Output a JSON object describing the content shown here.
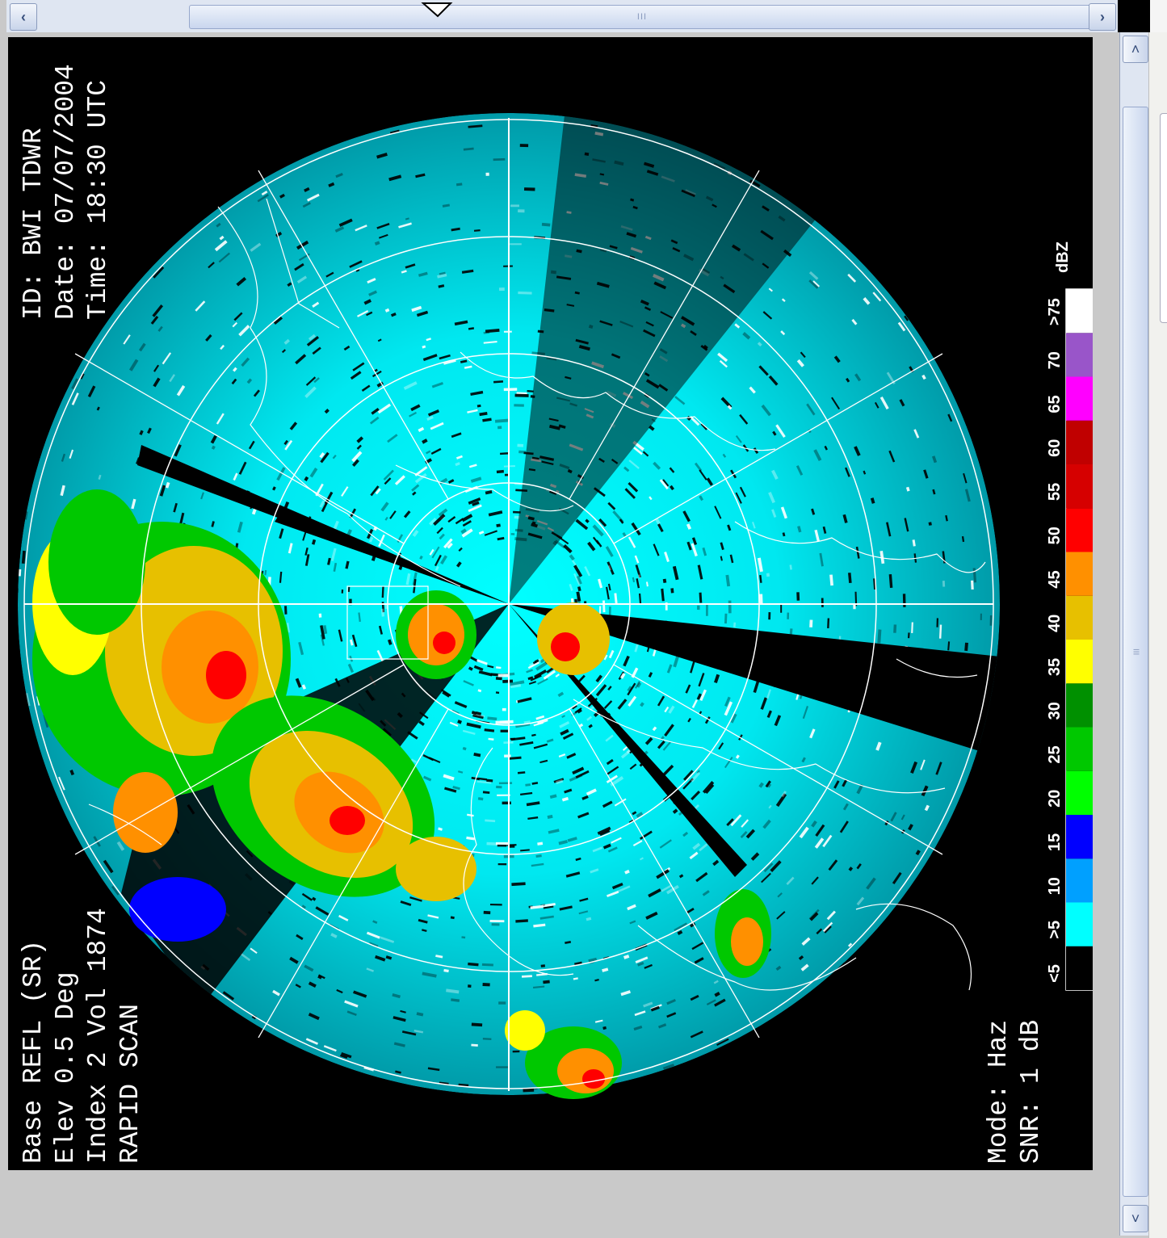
{
  "window": {
    "hscroll_thumb_grip": "III",
    "vscroll_thumb_grip": "III"
  },
  "radar": {
    "header_right": {
      "id_line": "ID:    BWI TDWR",
      "date_line": "Date: 07/07/2004",
      "time_line": "Time: 18:30 UTC"
    },
    "header_left": {
      "product_line": "Base REFL (SR)",
      "elev_line": "Elev 0.5 Deg",
      "index_line": "Index 2  Vol 1874",
      "scan_line": "RAPID SCAN"
    },
    "footer": {
      "mode_line": "Mode: Haz",
      "snr_line": "SNR:  1 dB"
    },
    "legend": {
      "unit": "dBZ",
      "items": [
        {
          "label": "<5",
          "color": "#000000"
        },
        {
          "label": ">5",
          "color": "#00ffff"
        },
        {
          "label": "10",
          "color": "#00a0ff"
        },
        {
          "label": "15",
          "color": "#0000ff"
        },
        {
          "label": "20",
          "color": "#00ff00"
        },
        {
          "label": "25",
          "color": "#00c800"
        },
        {
          "label": "30",
          "color": "#009000"
        },
        {
          "label": "35",
          "color": "#ffff00"
        },
        {
          "label": "40",
          "color": "#e7c000"
        },
        {
          "label": "45",
          "color": "#ff9000"
        },
        {
          "label": "50",
          "color": "#ff0000"
        },
        {
          "label": "55",
          "color": "#d60000"
        },
        {
          "label": "60",
          "color": "#c00000"
        },
        {
          "label": "65",
          "color": "#ff00ff"
        },
        {
          "label": "70",
          "color": "#9955c9"
        },
        {
          "label": ">75",
          "color": "#ffffff"
        }
      ]
    }
  }
}
